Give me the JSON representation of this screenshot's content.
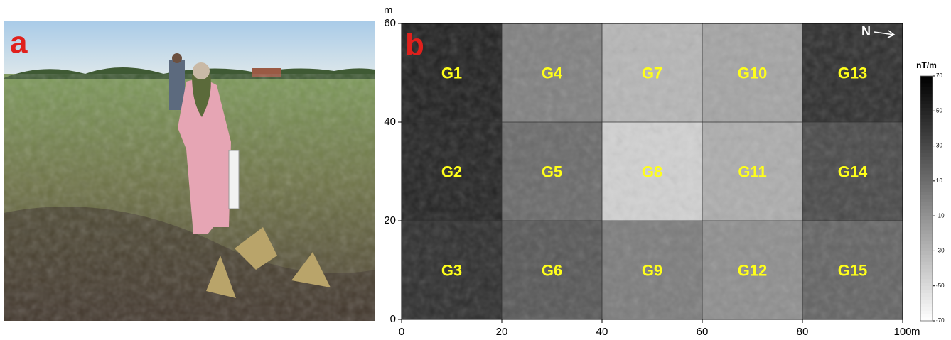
{
  "photo": {
    "panel_label": "a"
  },
  "chart_data": {
    "type": "heatmap",
    "panel_label": "b",
    "north_label": "N",
    "x_label": "m",
    "y_label": "m",
    "xlim": [
      0,
      100
    ],
    "ylim": [
      0,
      60
    ],
    "xticks": [
      0,
      20,
      40,
      60,
      80,
      100
    ],
    "yticks": [
      0,
      20,
      40,
      60
    ],
    "cells": [
      {
        "name": "G1",
        "x": [
          0,
          20
        ],
        "y": [
          40,
          60
        ],
        "value": 52
      },
      {
        "name": "G2",
        "x": [
          0,
          20
        ],
        "y": [
          20,
          40
        ],
        "value": 50
      },
      {
        "name": "G3",
        "x": [
          0,
          20
        ],
        "y": [
          0,
          20
        ],
        "value": 45
      },
      {
        "name": "G4",
        "x": [
          20,
          40
        ],
        "y": [
          40,
          60
        ],
        "value": 0
      },
      {
        "name": "G5",
        "x": [
          20,
          40
        ],
        "y": [
          20,
          40
        ],
        "value": 12
      },
      {
        "name": "G6",
        "x": [
          20,
          40
        ],
        "y": [
          0,
          20
        ],
        "value": 22
      },
      {
        "name": "G7",
        "x": [
          40,
          60
        ],
        "y": [
          40,
          60
        ],
        "value": -30
      },
      {
        "name": "G8",
        "x": [
          40,
          60
        ],
        "y": [
          20,
          40
        ],
        "value": -45
      },
      {
        "name": "G9",
        "x": [
          40,
          60
        ],
        "y": [
          0,
          20
        ],
        "value": 2
      },
      {
        "name": "G10",
        "x": [
          60,
          80
        ],
        "y": [
          40,
          60
        ],
        "value": -20
      },
      {
        "name": "G11",
        "x": [
          60,
          80
        ],
        "y": [
          20,
          40
        ],
        "value": -25
      },
      {
        "name": "G12",
        "x": [
          60,
          80
        ],
        "y": [
          0,
          20
        ],
        "value": -8
      },
      {
        "name": "G13",
        "x": [
          80,
          100
        ],
        "y": [
          40,
          60
        ],
        "value": 45
      },
      {
        "name": "G14",
        "x": [
          80,
          100
        ],
        "y": [
          20,
          40
        ],
        "value": 30
      },
      {
        "name": "G15",
        "x": [
          80,
          100
        ],
        "y": [
          0,
          20
        ],
        "value": 15
      }
    ],
    "colorbar": {
      "label": "nT/m",
      "lim": [
        -70,
        70
      ],
      "ticks": [
        70,
        50,
        30,
        10,
        -10,
        -30,
        -50,
        -70
      ]
    }
  }
}
